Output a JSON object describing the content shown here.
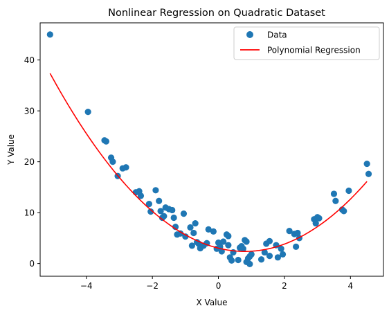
{
  "chart_data": {
    "type": "scatter",
    "title": "Nonlinear Regression on Quadratic Dataset",
    "xlabel": "X Value",
    "ylabel": "Y Value",
    "xlim": [
      -5.4,
      5.0
    ],
    "ylim": [
      -2.5,
      47.3
    ],
    "xticks": [
      -4,
      -2,
      0,
      2,
      4
    ],
    "yticks": [
      0,
      10,
      20,
      30,
      40
    ],
    "grid": false,
    "legend": {
      "placement": "top-right",
      "entries": [
        "Data",
        "Polynomial Regression"
      ]
    },
    "colors": {
      "points": "#1f77b4",
      "curve": "#ff0000",
      "axes": "#000000"
    },
    "series": [
      {
        "name": "Data",
        "kind": "scatter",
        "points": [
          [
            -5.1,
            45.0
          ],
          [
            -3.95,
            29.8
          ],
          [
            -3.45,
            24.2
          ],
          [
            -3.4,
            24.0
          ],
          [
            -3.25,
            20.8
          ],
          [
            -3.2,
            20.0
          ],
          [
            -3.05,
            17.2
          ],
          [
            -2.9,
            18.7
          ],
          [
            -2.8,
            18.9
          ],
          [
            -2.5,
            14.0
          ],
          [
            -2.4,
            14.2
          ],
          [
            -2.35,
            13.3
          ],
          [
            -2.1,
            11.7
          ],
          [
            -2.05,
            10.2
          ],
          [
            -1.9,
            14.4
          ],
          [
            -1.8,
            12.3
          ],
          [
            -1.75,
            10.3
          ],
          [
            -1.7,
            9.0
          ],
          [
            -1.65,
            9.3
          ],
          [
            -1.6,
            11.0
          ],
          [
            -1.5,
            10.7
          ],
          [
            -1.4,
            10.5
          ],
          [
            -1.35,
            9.0
          ],
          [
            -1.3,
            7.2
          ],
          [
            -1.25,
            5.7
          ],
          [
            -1.15,
            5.9
          ],
          [
            -1.05,
            9.8
          ],
          [
            -1.0,
            5.3
          ],
          [
            -0.85,
            7.1
          ],
          [
            -0.8,
            3.5
          ],
          [
            -0.75,
            6.0
          ],
          [
            -0.7,
            7.9
          ],
          [
            -0.65,
            4.2
          ],
          [
            -0.6,
            3.9
          ],
          [
            -0.55,
            3.0
          ],
          [
            -0.45,
            3.5
          ],
          [
            -0.35,
            4.0
          ],
          [
            -0.3,
            6.7
          ],
          [
            -0.15,
            6.3
          ],
          [
            -0.05,
            2.9
          ],
          [
            0.0,
            4.1
          ],
          [
            0.05,
            3.3
          ],
          [
            0.1,
            2.4
          ],
          [
            0.15,
            4.3
          ],
          [
            0.25,
            5.7
          ],
          [
            0.3,
            5.4
          ],
          [
            0.3,
            3.6
          ],
          [
            0.35,
            1.2
          ],
          [
            0.4,
            0.6
          ],
          [
            0.45,
            2.2
          ],
          [
            0.6,
            0.7
          ],
          [
            0.65,
            3.1
          ],
          [
            0.7,
            3.4
          ],
          [
            0.75,
            2.9
          ],
          [
            0.8,
            4.6
          ],
          [
            0.85,
            4.3
          ],
          [
            0.85,
            0.3
          ],
          [
            0.9,
            1.0
          ],
          [
            0.95,
            1.4
          ],
          [
            0.95,
            -0.1
          ],
          [
            1.0,
            1.8
          ],
          [
            1.3,
            0.8
          ],
          [
            1.4,
            2.2
          ],
          [
            1.45,
            3.9
          ],
          [
            1.55,
            4.4
          ],
          [
            1.55,
            1.5
          ],
          [
            1.75,
            3.6
          ],
          [
            1.8,
            1.2
          ],
          [
            1.9,
            2.9
          ],
          [
            1.95,
            1.8
          ],
          [
            2.15,
            6.4
          ],
          [
            2.3,
            5.8
          ],
          [
            2.35,
            3.3
          ],
          [
            2.4,
            6.0
          ],
          [
            2.45,
            5.0
          ],
          [
            2.9,
            8.7
          ],
          [
            2.95,
            7.9
          ],
          [
            3.0,
            9.1
          ],
          [
            3.05,
            8.9
          ],
          [
            3.5,
            13.7
          ],
          [
            3.55,
            12.3
          ],
          [
            3.75,
            10.6
          ],
          [
            3.8,
            10.3
          ],
          [
            3.95,
            14.3
          ],
          [
            4.5,
            19.6
          ],
          [
            4.55,
            17.6
          ]
        ]
      },
      {
        "name": "Polynomial Regression",
        "kind": "line",
        "coefficients": {
          "a": 1.005,
          "b": -1.61,
          "c": 3.02
        },
        "x_range": [
          -5.1,
          4.5
        ]
      }
    ]
  }
}
